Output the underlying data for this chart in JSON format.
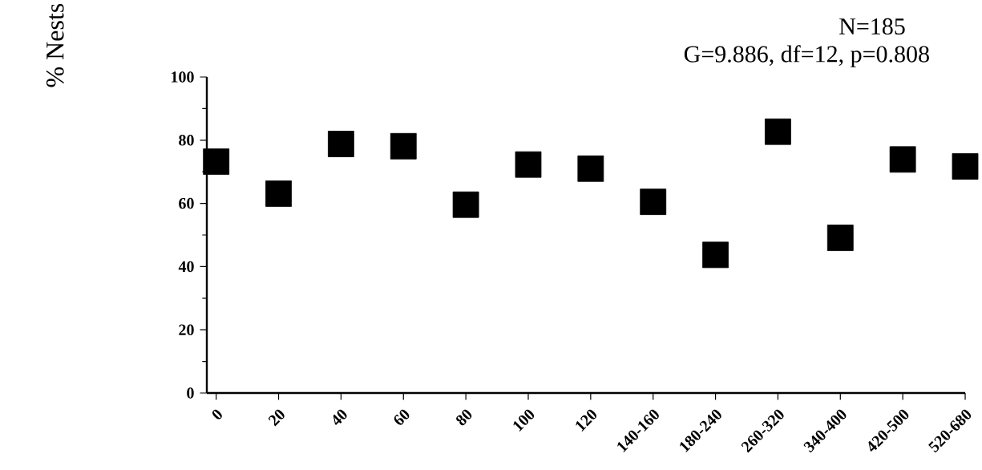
{
  "chart_data": {
    "type": "scatter",
    "ylabel": "% Nests",
    "annotations": [
      "N=185",
      "G=9.886, df=12, p=0.808"
    ],
    "categories": [
      "0",
      "20",
      "40",
      "60",
      "80",
      "100",
      "120",
      "140-160",
      "180-240",
      "260-320",
      "340-400",
      "420-500",
      "520-680"
    ],
    "values": [
      73.2,
      63.1,
      78.8,
      78.1,
      59.6,
      72.3,
      71.0,
      60.5,
      43.7,
      82.7,
      49.1,
      73.9,
      71.7
    ],
    "color": "#000000",
    "marker": "square",
    "ylim": [
      0,
      100
    ],
    "yticks": [
      0,
      20,
      40,
      60,
      80,
      100
    ],
    "grid": false
  }
}
